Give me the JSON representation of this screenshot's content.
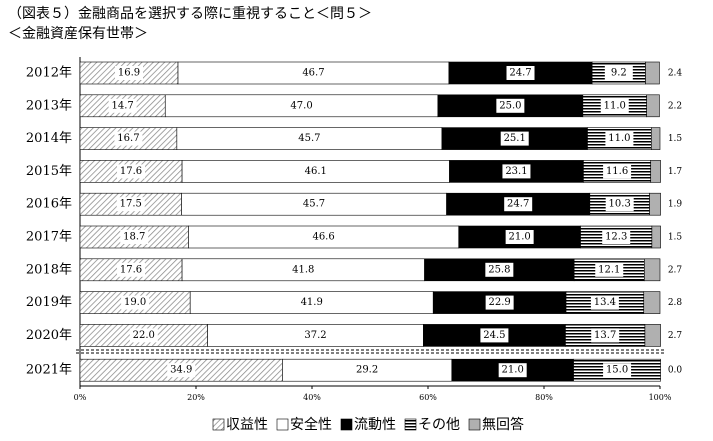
{
  "chart_data": {
    "type": "stacked-bar-horizontal",
    "title": "（図表５）金融商品を選択する際に重視すること＜問５＞",
    "subtitle": "＜金融資産保有世帯＞",
    "categories": [
      "2012年",
      "2013年",
      "2014年",
      "2015年",
      "2016年",
      "2017年",
      "2018年",
      "2019年",
      "2020年",
      "2021年"
    ],
    "series": [
      {
        "name": "収益性",
        "color": "#777777",
        "pattern": "hatch",
        "values": [
          16.9,
          14.7,
          16.7,
          17.6,
          17.5,
          18.7,
          17.6,
          19.0,
          22.0,
          34.9
        ],
        "value_labels": [
          "16.9",
          "14.7",
          "16.7",
          "17.6",
          "17.5",
          "18.7",
          "17.6",
          "19.0",
          "22.0",
          "34.9"
        ]
      },
      {
        "name": "安全性",
        "color": "#ffffff",
        "pattern": "solid",
        "values": [
          46.7,
          47.0,
          45.7,
          46.1,
          45.7,
          46.6,
          41.8,
          41.9,
          37.2,
          29.2
        ],
        "value_labels": [
          "46.7",
          "47.0",
          "45.7",
          "46.1",
          "45.7",
          "46.6",
          "41.8",
          "41.9",
          "37.2",
          "29.2"
        ]
      },
      {
        "name": "流動性",
        "color": "#000000",
        "pattern": "solid",
        "values": [
          24.7,
          25.0,
          25.1,
          23.1,
          24.7,
          21.0,
          25.8,
          22.9,
          24.5,
          21.0
        ],
        "value_labels": [
          "24.7",
          "25.0",
          "25.1",
          "23.1",
          "24.7",
          "21.0",
          "25.8",
          "22.9",
          "24.5",
          "21.0"
        ]
      },
      {
        "name": "その他",
        "color": "#000000",
        "pattern": "stripes",
        "values": [
          9.2,
          11.0,
          11.0,
          11.6,
          10.3,
          12.3,
          12.1,
          13.4,
          13.7,
          15.0
        ],
        "value_labels": [
          "9.2",
          "11.0",
          "11.0",
          "11.6",
          "10.3",
          "12.3",
          "12.1",
          "13.4",
          "13.7",
          "15.0"
        ]
      },
      {
        "name": "無回答",
        "color": "#b0b0b0",
        "pattern": "solid",
        "values": [
          2.4,
          2.2,
          1.5,
          1.7,
          1.9,
          1.5,
          2.7,
          2.8,
          2.7,
          0.0
        ],
        "value_labels": [
          "2.4",
          "2.2",
          "1.5",
          "1.7",
          "1.9",
          "1.5",
          "2.7",
          "2.8",
          "2.7",
          "0.0"
        ]
      }
    ],
    "xlim": [
      0,
      100
    ],
    "xticks": [
      {
        "value": 0,
        "label": "0%"
      },
      {
        "value": 20,
        "label": "20%"
      },
      {
        "value": 40,
        "label": "40%"
      },
      {
        "value": 60,
        "label": "60%"
      },
      {
        "value": 80,
        "label": "80%"
      },
      {
        "value": 100,
        "label": "100%"
      }
    ],
    "legend": "bottom"
  }
}
